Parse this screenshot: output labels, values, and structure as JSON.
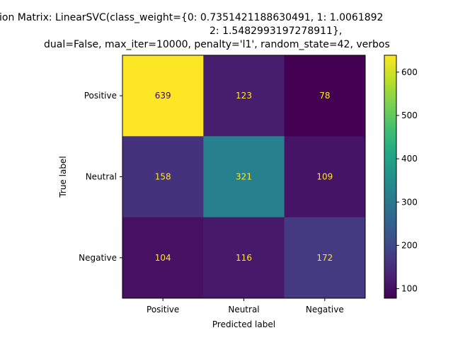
{
  "chart_data": {
    "type": "heatmap",
    "title_lines": [
      "ion Matrix: LinearSVC(class_weight={0: 0.7351421188630491, 1: 1.0061892",
      "2: 1.5482993197278911},",
      "dual=False, max_iter=10000, penalty='l1', random_state=42, verbos"
    ],
    "xlabel": "Predicted label",
    "ylabel": "True label",
    "x_categories": [
      "Positive",
      "Neutral",
      "Negative"
    ],
    "y_categories": [
      "Positive",
      "Neutral",
      "Negative"
    ],
    "values": [
      [
        639,
        123,
        78
      ],
      [
        158,
        321,
        109
      ],
      [
        104,
        116,
        172
      ]
    ],
    "cell_labels": [
      [
        "639",
        "123",
        "78"
      ],
      [
        "158",
        "321",
        "109"
      ],
      [
        "104",
        "116",
        "172"
      ]
    ],
    "colormap": "viridis",
    "colorbar": {
      "range": [
        78,
        639
      ],
      "ticks": [
        100,
        200,
        300,
        400,
        500,
        600
      ],
      "tick_labels": [
        "100",
        "200",
        "300",
        "400",
        "500",
        "600"
      ]
    },
    "label_colors": {
      "on_dark": "#fde725",
      "on_light": "#440154"
    }
  }
}
